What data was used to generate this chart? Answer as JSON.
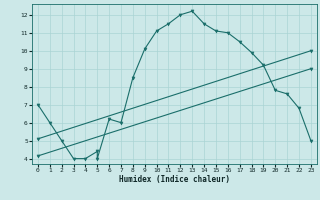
{
  "xlabel": "Humidex (Indice chaleur)",
  "xlim": [
    -0.5,
    23.5
  ],
  "ylim": [
    3.7,
    12.6
  ],
  "xticks": [
    0,
    1,
    2,
    3,
    4,
    5,
    6,
    7,
    8,
    9,
    10,
    11,
    12,
    13,
    14,
    15,
    16,
    17,
    18,
    19,
    20,
    21,
    22,
    23
  ],
  "yticks": [
    4,
    5,
    6,
    7,
    8,
    9,
    10,
    11,
    12
  ],
  "bg_color": "#cce8e8",
  "grid_color": "#aad4d4",
  "line_color": "#1a6e6a",
  "line1_x": [
    0,
    1,
    2,
    3,
    4,
    5,
    5,
    6,
    7,
    8,
    9,
    10,
    11,
    12,
    13,
    14,
    15,
    16,
    17,
    18,
    19,
    20,
    21,
    22,
    23
  ],
  "line1_y": [
    7.0,
    6.0,
    5.0,
    4.0,
    4.0,
    4.4,
    4.0,
    6.2,
    6.0,
    8.5,
    10.1,
    11.1,
    11.5,
    12.0,
    12.2,
    11.5,
    11.1,
    11.0,
    10.5,
    9.9,
    9.2,
    7.8,
    7.6,
    6.8,
    5.0
  ],
  "line2_x": [
    0,
    23
  ],
  "line2_y": [
    5.1,
    10.0
  ],
  "line3_x": [
    0,
    23
  ],
  "line3_y": [
    4.15,
    9.0
  ]
}
